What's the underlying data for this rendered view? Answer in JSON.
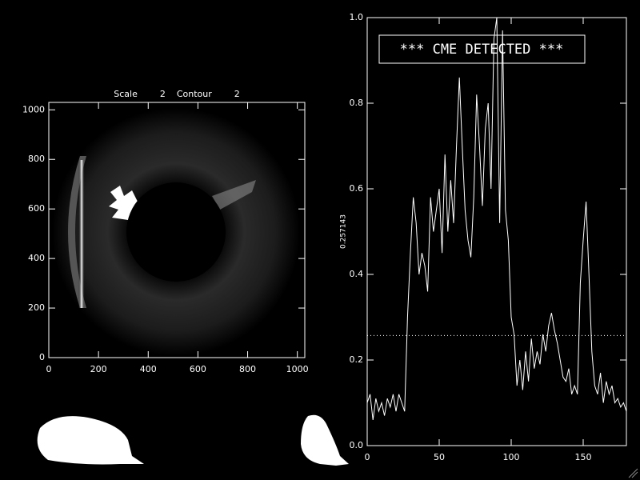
{
  "chart_data": [
    {
      "type": "image",
      "title": "Scale        2    Contour        2",
      "xlim": [
        0,
        1030
      ],
      "ylim": [
        0,
        1030
      ],
      "xticks": [
        0,
        200,
        400,
        600,
        800,
        1000
      ],
      "yticks": [
        0,
        200,
        400,
        600,
        800,
        1000
      ]
    },
    {
      "type": "line",
      "annotation": "*** CME DETECTED ***",
      "threshold": 0.257143,
      "color": "#ffffff",
      "xlim": [
        0,
        180
      ],
      "ylim": [
        0,
        1
      ],
      "xticks": [
        0,
        50,
        100,
        150
      ],
      "yticks": [
        {
          "value": 0,
          "label": "0.0"
        },
        0.2,
        0.4,
        0.6,
        0.8,
        {
          "value": 1,
          "label": "1.0"
        }
      ],
      "x": [
        0,
        2,
        4,
        6,
        8,
        10,
        12,
        14,
        16,
        18,
        20,
        22,
        24,
        26,
        28,
        30,
        32,
        34,
        36,
        38,
        40,
        42,
        44,
        46,
        48,
        50,
        52,
        54,
        56,
        58,
        60,
        62,
        64,
        66,
        68,
        70,
        72,
        74,
        76,
        78,
        80,
        82,
        84,
        86,
        88,
        90,
        92,
        94,
        96,
        98,
        100,
        102,
        104,
        106,
        108,
        110,
        112,
        114,
        116,
        118,
        120,
        122,
        124,
        126,
        128,
        130,
        132,
        134,
        136,
        138,
        140,
        142,
        144,
        146,
        148,
        150,
        152,
        154,
        156,
        158,
        160,
        162,
        164,
        166,
        168,
        170,
        172,
        174,
        176,
        178,
        180
      ],
      "values": [
        0.1,
        0.12,
        0.06,
        0.11,
        0.08,
        0.1,
        0.07,
        0.11,
        0.09,
        0.12,
        0.08,
        0.12,
        0.1,
        0.08,
        0.3,
        0.45,
        0.58,
        0.52,
        0.4,
        0.45,
        0.42,
        0.36,
        0.58,
        0.5,
        0.55,
        0.6,
        0.45,
        0.68,
        0.5,
        0.62,
        0.52,
        0.7,
        0.86,
        0.7,
        0.55,
        0.48,
        0.44,
        0.58,
        0.82,
        0.7,
        0.56,
        0.74,
        0.8,
        0.6,
        0.95,
        1.0,
        0.52,
        0.97,
        0.55,
        0.48,
        0.3,
        0.26,
        0.14,
        0.2,
        0.13,
        0.22,
        0.15,
        0.25,
        0.18,
        0.22,
        0.19,
        0.26,
        0.22,
        0.28,
        0.31,
        0.27,
        0.24,
        0.2,
        0.16,
        0.15,
        0.18,
        0.12,
        0.14,
        0.12,
        0.38,
        0.48,
        0.57,
        0.4,
        0.22,
        0.14,
        0.12,
        0.17,
        0.1,
        0.15,
        0.12,
        0.14,
        0.1,
        0.11,
        0.09,
        0.1,
        0.08
      ]
    }
  ]
}
